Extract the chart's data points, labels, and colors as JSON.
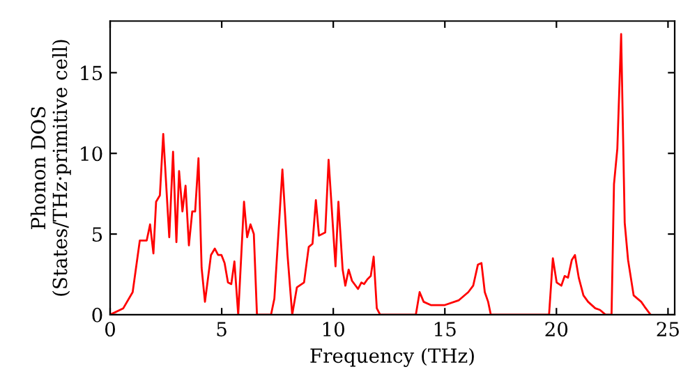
{
  "chart_data": {
    "type": "line",
    "xlabel": "Frequency (THz)",
    "ylabel": "Phonon DOS\n(States/THz·primitive cell)",
    "xlim": [
      0,
      25.3
    ],
    "ylim": [
      0,
      18.2
    ],
    "xticks": [
      0,
      5,
      10,
      15,
      20,
      25
    ],
    "yticks": [
      0,
      5,
      10,
      15
    ],
    "grid": false,
    "legend": false,
    "marker": "none",
    "line_style": "solid",
    "series": [
      {
        "color": "#ff0000",
        "x": [
          0,
          0.59,
          1.01,
          1.33,
          1.64,
          1.79,
          1.94,
          2.06,
          2.23,
          2.38,
          2.65,
          2.82,
          2.97,
          3.09,
          3.24,
          3.38,
          3.53,
          3.68,
          3.81,
          3.96,
          4.1,
          4.25,
          4.52,
          4.69,
          4.84,
          4.99,
          5.13,
          5.28,
          5.43,
          5.57,
          5.74,
          6.0,
          6.14,
          6.29,
          6.44,
          6.58,
          7.21,
          7.36,
          7.72,
          7.95,
          8.16,
          8.37,
          8.69,
          8.9,
          9.07,
          9.22,
          9.36,
          9.64,
          9.79,
          10.1,
          10.23,
          10.42,
          10.54,
          10.69,
          10.84,
          11.11,
          11.26,
          11.38,
          11.53,
          11.68,
          11.81,
          11.95,
          12.1,
          13.7,
          13.87,
          14.05,
          14.37,
          15.0,
          15.63,
          16.05,
          16.27,
          16.48,
          16.64,
          16.79,
          16.94,
          17.06,
          19.67,
          19.84,
          20.01,
          20.22,
          20.37,
          20.52,
          20.69,
          20.83,
          21.0,
          21.21,
          21.42,
          21.74,
          21.95,
          22.2,
          22.47,
          22.58,
          22.73,
          22.9,
          23.06,
          23.21,
          23.46,
          23.8,
          23.95,
          24.22
        ],
        "values": [
          0,
          0.4,
          1.4,
          4.6,
          4.6,
          5.6,
          3.8,
          7.0,
          7.4,
          11.2,
          4.8,
          10.1,
          4.5,
          8.9,
          6.4,
          8.0,
          4.3,
          6.4,
          6.4,
          9.7,
          2.9,
          0.8,
          3.7,
          4.1,
          3.7,
          3.7,
          3.2,
          2.0,
          1.9,
          3.3,
          0,
          7.0,
          4.8,
          5.6,
          5.0,
          0,
          0,
          1.0,
          9.0,
          3.7,
          0,
          1.7,
          2.0,
          4.2,
          4.4,
          7.1,
          4.9,
          5.1,
          9.6,
          3.0,
          7.0,
          2.8,
          1.8,
          2.8,
          2.1,
          1.6,
          2.0,
          1.9,
          2.2,
          2.4,
          3.6,
          0.4,
          0,
          0,
          1.4,
          0.8,
          0.6,
          0.6,
          0.9,
          1.4,
          1.8,
          3.1,
          3.2,
          1.4,
          0.8,
          0,
          0,
          3.5,
          2.0,
          1.8,
          2.4,
          2.3,
          3.4,
          3.7,
          2.3,
          1.2,
          0.8,
          0.4,
          0.3,
          0,
          0,
          8.1,
          10.3,
          17.4,
          5.7,
          3.4,
          1.2,
          0.8,
          0.5,
          0
        ]
      }
    ]
  }
}
